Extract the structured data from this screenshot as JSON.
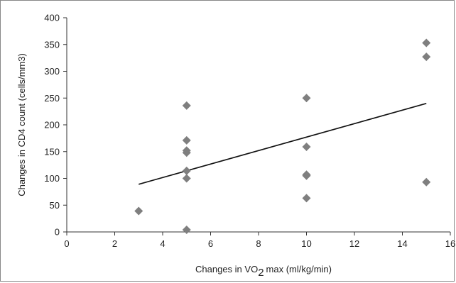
{
  "chart_data": {
    "type": "scatter",
    "xlabel": {
      "prefix": "Changes in VO",
      "subscript": "2",
      "suffix": "max (ml/kg/min)"
    },
    "ylabel": "Changes in CD4 count (cells/mm3)",
    "xlim": [
      0,
      16
    ],
    "ylim": [
      0,
      400
    ],
    "xticks": [
      "0",
      "2",
      "4",
      "6",
      "8",
      "10",
      "12",
      "14",
      "16"
    ],
    "yticks": [
      "0",
      "50",
      "100",
      "150",
      "200",
      "250",
      "300",
      "350",
      "400"
    ],
    "grid": false,
    "legend": "none",
    "points": [
      {
        "x": 3,
        "y": 39
      },
      {
        "x": 5,
        "y": 4
      },
      {
        "x": 5,
        "y": 100
      },
      {
        "x": 5,
        "y": 114
      },
      {
        "x": 5,
        "y": 148
      },
      {
        "x": 5,
        "y": 152
      },
      {
        "x": 5,
        "y": 171
      },
      {
        "x": 5,
        "y": 236
      },
      {
        "x": 10,
        "y": 63
      },
      {
        "x": 10,
        "y": 105
      },
      {
        "x": 10,
        "y": 107
      },
      {
        "x": 10,
        "y": 159
      },
      {
        "x": 10,
        "y": 250
      },
      {
        "x": 15,
        "y": 93
      },
      {
        "x": 15,
        "y": 327
      },
      {
        "x": 15,
        "y": 353
      }
    ],
    "trendline": {
      "x": [
        3,
        15
      ],
      "y": [
        89,
        240
      ]
    },
    "marker_color": "#7f7f7f",
    "line_color": "#111111"
  }
}
